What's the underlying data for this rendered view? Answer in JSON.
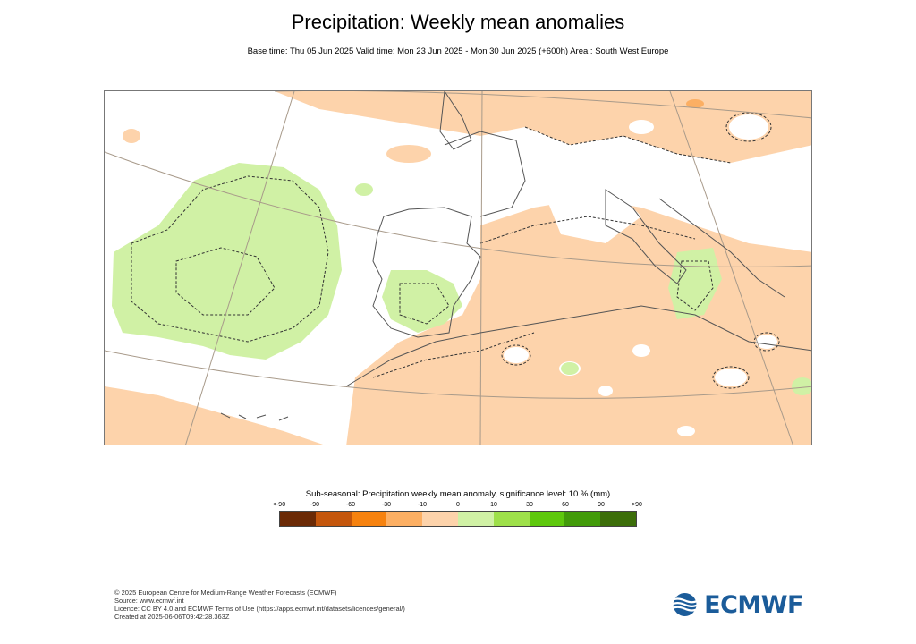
{
  "title": "Precipitation: Weekly mean anomalies",
  "subtitle": "Base time: Thu 05 Jun 2025 Valid time: Mon 23 Jun 2025 - Mon 30 Jun 2025 (+600h) Area : South West Europe",
  "legend": {
    "title": "Sub-seasonal: Precipitation weekly mean anomaly, significance level: 10 % (mm)",
    "labels": [
      "<-90",
      "-90",
      "-60",
      "-30",
      "-10",
      "0",
      "10",
      "30",
      "60",
      "90",
      ">90"
    ],
    "colors": [
      "#6b2a06",
      "#c4560c",
      "#f6820f",
      "#fcaf63",
      "#fdd3ab",
      "#d0f1a5",
      "#9ee04a",
      "#5ec80d",
      "#429b0a",
      "#3c6e0a"
    ]
  },
  "map": {
    "area": "South West Europe",
    "land_color": "#ffffff",
    "coast_color": "#555555",
    "grid_color": "#a89a8a"
  },
  "footer": {
    "line1": "© 2025 European Centre for Medium-Range Weather Forecasts (ECMWF)",
    "line2": "Source: www.ecmwf.int",
    "line3": "Licence: CC BY 4.0 and ECMWF Terms of Use (https://apps.ecmwf.int/datasets/licences/general/)",
    "line4": "Created at 2025-06-06T09:42:28.363Z"
  },
  "logo": {
    "text": "ECMWF",
    "color": "#1b5c9a"
  }
}
